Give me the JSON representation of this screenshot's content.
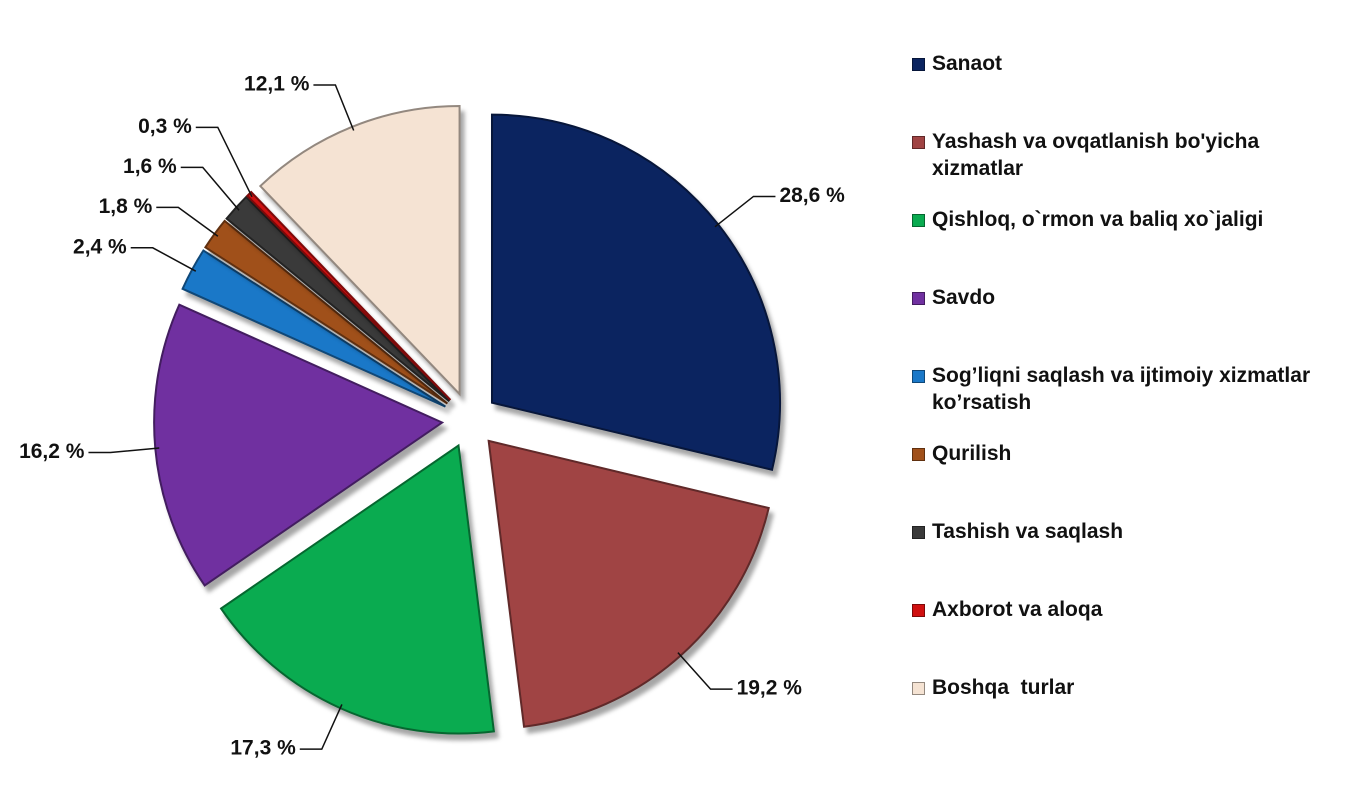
{
  "chart_data": {
    "type": "pie",
    "categories": [
      "Sanaot",
      "Yashash va ovqatlanish bo'yicha xizmatlar",
      "Qishloq, o`rmon va baliq xo`jaligi",
      "Savdo",
      "Sog’liqni saqlash va ijtimoiy xizmatlar ko’rsatish",
      "Qurilish",
      "Tashish va saqlash",
      "Axborot va aloqa",
      "Boshqa  turlar"
    ],
    "values": [
      28.6,
      19.2,
      17.3,
      16.2,
      2.4,
      1.8,
      1.6,
      0.3,
      12.1
    ],
    "value_labels": [
      "28,6 %",
      "19,2 %",
      "17,3 %",
      "16,2 %",
      "2,4 %",
      "1,8 %",
      "1,6 %",
      "0,3 %",
      "12,1 %"
    ],
    "colors": [
      "#0b2460",
      "#a04444",
      "#0aab50",
      "#7030a0",
      "#1a78c8",
      "#a0501a",
      "#3a3a3a",
      "#d01010",
      "#f5e3d3"
    ],
    "legend": "right"
  }
}
